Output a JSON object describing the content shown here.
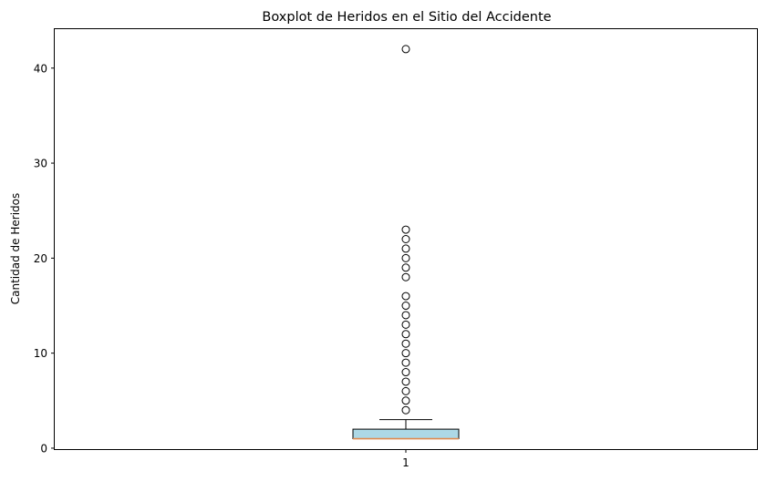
{
  "chart_data": {
    "type": "boxplot",
    "title": "Boxplot de Heridos en el Sitio del Accidente",
    "xlabel": "",
    "ylabel": "Cantidad de Heridos",
    "categories": [
      "1"
    ],
    "ylim": [
      -0.1,
      44.1
    ],
    "yticks": [
      0,
      10,
      20,
      30,
      40
    ],
    "grid": false,
    "box": {
      "min": 1,
      "q1": 1,
      "median": 1,
      "q3": 2,
      "max": 3,
      "fill_color": "#add8e6",
      "median_color": "#e08a4f"
    },
    "outliers": [
      4,
      5,
      6,
      7,
      8,
      9,
      10,
      11,
      12,
      13,
      14,
      15,
      16,
      18,
      19,
      20,
      21,
      22,
      23,
      42
    ]
  }
}
